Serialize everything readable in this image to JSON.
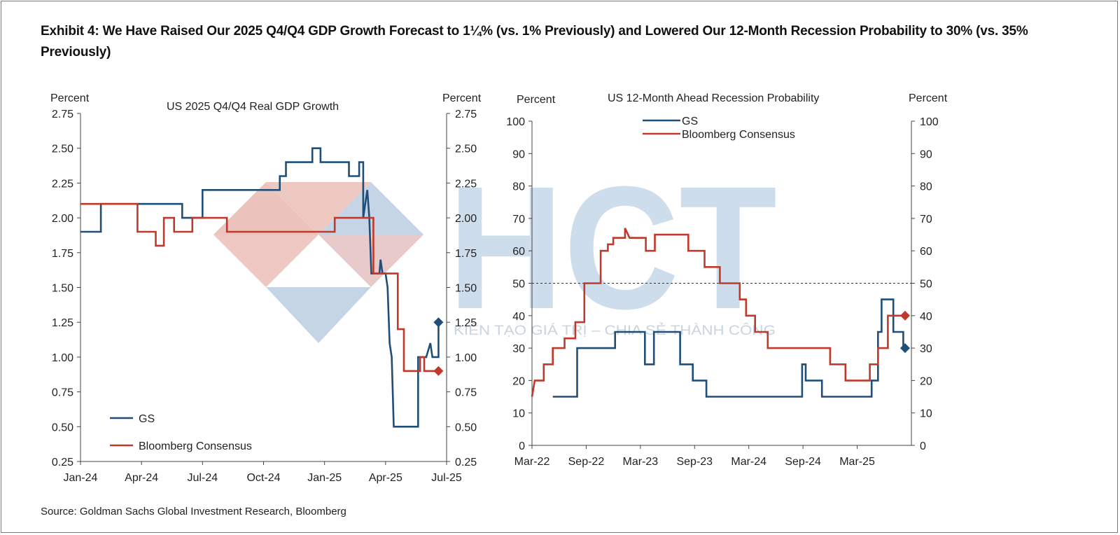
{
  "title": "Exhibit 4: We Have Raised Our 2025 Q4/Q4 GDP Growth Forecast to 1¼% (vs. 1% Previously) and Lowered Our 12-Month Recession Probability to 30% (vs. 35% Previously)",
  "source": "Source: Goldman Sachs Global Investment Research, Bloomberg",
  "watermark": {
    "letters": "HCT",
    "tagline": "KIẾN TẠO GIÁ TRỊ – CHIA SẺ THÀNH CÔNG"
  },
  "colors": {
    "gs": "#1f4e79",
    "bloomberg": "#c0392b",
    "watermark_blue": "#b9cde3",
    "watermark_red": "#eab5ad"
  },
  "chart_data": [
    {
      "type": "line",
      "title": "US 2025  Q4/Q4  Real  GDP Growth",
      "ylabel_left": "Percent",
      "ylabel_right": "Percent",
      "ylim": [
        0.25,
        2.75
      ],
      "yticks": [
        "2.75",
        "2.50",
        "2.25",
        "2.00",
        "1.75",
        "1.50",
        "1.25",
        "1.00",
        "0.75",
        "0.50",
        "0.25"
      ],
      "xlim": [
        0,
        18
      ],
      "xticks": [
        {
          "label": "Jan-24",
          "x": 0
        },
        {
          "label": "Apr-24",
          "x": 3
        },
        {
          "label": "Jul-24",
          "x": 6
        },
        {
          "label": "Oct-24",
          "x": 9
        },
        {
          "label": "Jan-25",
          "x": 12
        },
        {
          "label": "Apr-25",
          "x": 15
        },
        {
          "label": "Jul-25",
          "x": 18
        }
      ],
      "legend_position": "bottom-left",
      "series": [
        {
          "name": "GS",
          "color": "#1f4e79",
          "points": [
            [
              0,
              1.9
            ],
            [
              1,
              1.9
            ],
            [
              1,
              2.1
            ],
            [
              5,
              2.1
            ],
            [
              5,
              2.0
            ],
            [
              6,
              2.0
            ],
            [
              6,
              2.2
            ],
            [
              9.8,
              2.2
            ],
            [
              9.8,
              2.3
            ],
            [
              10.1,
              2.3
            ],
            [
              10.1,
              2.4
            ],
            [
              11.4,
              2.4
            ],
            [
              11.4,
              2.5
            ],
            [
              11.8,
              2.5
            ],
            [
              11.8,
              2.4
            ],
            [
              13.2,
              2.4
            ],
            [
              13.2,
              2.3
            ],
            [
              13.7,
              2.3
            ],
            [
              13.7,
              2.4
            ],
            [
              13.9,
              2.4
            ],
            [
              13.9,
              2.0
            ],
            [
              14.1,
              2.2
            ],
            [
              14.2,
              2.0
            ],
            [
              14.3,
              1.6
            ],
            [
              14.7,
              1.6
            ],
            [
              14.75,
              1.7
            ],
            [
              14.85,
              1.6
            ],
            [
              15.0,
              1.6
            ],
            [
              15.1,
              1.5
            ],
            [
              15.2,
              1.1
            ],
            [
              15.3,
              1.0
            ],
            [
              15.4,
              0.5
            ],
            [
              16.6,
              0.5
            ],
            [
              16.6,
              1.0
            ],
            [
              17.0,
              1.0
            ],
            [
              17.2,
              1.1
            ],
            [
              17.3,
              1.0
            ],
            [
              17.6,
              1.0
            ],
            [
              17.6,
              1.25
            ]
          ],
          "end_marker": [
            17.6,
            1.25
          ]
        },
        {
          "name": "Bloomberg Consensus",
          "color": "#c0392b",
          "points": [
            [
              0,
              2.1
            ],
            [
              2.8,
              2.1
            ],
            [
              2.8,
              1.9
            ],
            [
              3.7,
              1.9
            ],
            [
              3.7,
              1.8
            ],
            [
              4.1,
              1.8
            ],
            [
              4.1,
              2.0
            ],
            [
              4.6,
              2.0
            ],
            [
              4.6,
              1.9
            ],
            [
              5.5,
              1.9
            ],
            [
              5.5,
              2.0
            ],
            [
              7.2,
              2.0
            ],
            [
              7.2,
              1.9
            ],
            [
              12.5,
              1.9
            ],
            [
              12.5,
              2.0
            ],
            [
              14.4,
              2.0
            ],
            [
              14.4,
              1.6
            ],
            [
              15.6,
              1.6
            ],
            [
              15.6,
              1.2
            ],
            [
              15.9,
              1.2
            ],
            [
              15.9,
              0.9
            ],
            [
              16.7,
              0.9
            ],
            [
              16.7,
              1.0
            ],
            [
              16.9,
              1.0
            ],
            [
              16.9,
              0.9
            ],
            [
              17.6,
              0.9
            ]
          ],
          "end_marker": [
            17.6,
            0.9
          ]
        }
      ]
    },
    {
      "type": "line",
      "title": "US 12-Month  Ahead  Recession Probability",
      "ylabel_left": "Percent",
      "ylabel_right": "Percent",
      "ylim": [
        0,
        100
      ],
      "yticks": [
        "100",
        "90",
        "80",
        "70",
        "60",
        "50",
        "40",
        "30",
        "20",
        "10",
        "0"
      ],
      "xlim": [
        0,
        42
      ],
      "xticks": [
        {
          "label": "Mar-22",
          "x": 0
        },
        {
          "label": "Sep-22",
          "x": 6
        },
        {
          "label": "Mar-23",
          "x": 12
        },
        {
          "label": "Sep-23",
          "x": 18
        },
        {
          "label": "Mar-24",
          "x": 24
        },
        {
          "label": "Sep-24",
          "x": 30
        },
        {
          "label": "Mar-25",
          "x": 36
        }
      ],
      "reference_line": 50,
      "legend_position": "top-left",
      "series": [
        {
          "name": "GS",
          "color": "#1f4e79",
          "points": [
            [
              2.3,
              15
            ],
            [
              5,
              15
            ],
            [
              5,
              30
            ],
            [
              9.2,
              30
            ],
            [
              9.2,
              35
            ],
            [
              12.5,
              35
            ],
            [
              12.5,
              25
            ],
            [
              13.5,
              25
            ],
            [
              13.5,
              35
            ],
            [
              16.4,
              35
            ],
            [
              16.4,
              25
            ],
            [
              17.8,
              25
            ],
            [
              17.8,
              20
            ],
            [
              19.3,
              20
            ],
            [
              19.3,
              15
            ],
            [
              29.9,
              15
            ],
            [
              29.9,
              25
            ],
            [
              30.3,
              25
            ],
            [
              30.3,
              20
            ],
            [
              32.1,
              20
            ],
            [
              32.1,
              15
            ],
            [
              37.6,
              15
            ],
            [
              37.6,
              20
            ],
            [
              38.3,
              20
            ],
            [
              38.3,
              35
            ],
            [
              38.7,
              35
            ],
            [
              38.7,
              45
            ],
            [
              40,
              45
            ],
            [
              40,
              35
            ],
            [
              41.1,
              35
            ],
            [
              41.1,
              30
            ]
          ],
          "end_marker": [
            41.3,
            30
          ]
        },
        {
          "name": "Bloomberg Consensus",
          "color": "#c0392b",
          "points": [
            [
              0,
              15
            ],
            [
              0.3,
              20
            ],
            [
              1.3,
              20
            ],
            [
              1.3,
              25
            ],
            [
              2.3,
              25
            ],
            [
              2.3,
              30
            ],
            [
              3.6,
              30
            ],
            [
              3.6,
              33
            ],
            [
              4.8,
              33
            ],
            [
              4.8,
              38
            ],
            [
              5.8,
              38
            ],
            [
              5.8,
              50
            ],
            [
              7.6,
              50
            ],
            [
              7.6,
              60
            ],
            [
              8.4,
              60
            ],
            [
              8.4,
              62
            ],
            [
              9,
              62
            ],
            [
              9,
              64
            ],
            [
              10.3,
              64
            ],
            [
              10.3,
              67
            ],
            [
              10.8,
              64
            ],
            [
              12.6,
              64
            ],
            [
              12.6,
              60
            ],
            [
              13.6,
              60
            ],
            [
              13.6,
              65
            ],
            [
              17.3,
              65
            ],
            [
              17.3,
              60
            ],
            [
              19.1,
              60
            ],
            [
              19.1,
              55
            ],
            [
              20.8,
              55
            ],
            [
              20.8,
              50
            ],
            [
              23,
              50
            ],
            [
              23,
              45
            ],
            [
              23.7,
              45
            ],
            [
              23.7,
              40
            ],
            [
              24.7,
              40
            ],
            [
              24.7,
              35
            ],
            [
              26.1,
              35
            ],
            [
              26.1,
              30
            ],
            [
              33,
              30
            ],
            [
              33,
              25
            ],
            [
              34.7,
              25
            ],
            [
              34.7,
              20
            ],
            [
              37.4,
              20
            ],
            [
              37.4,
              25
            ],
            [
              38.3,
              25
            ],
            [
              38.3,
              30
            ],
            [
              39.4,
              30
            ],
            [
              39.4,
              40
            ],
            [
              41.3,
              40
            ]
          ],
          "end_marker": [
            41.3,
            40
          ]
        }
      ]
    }
  ]
}
